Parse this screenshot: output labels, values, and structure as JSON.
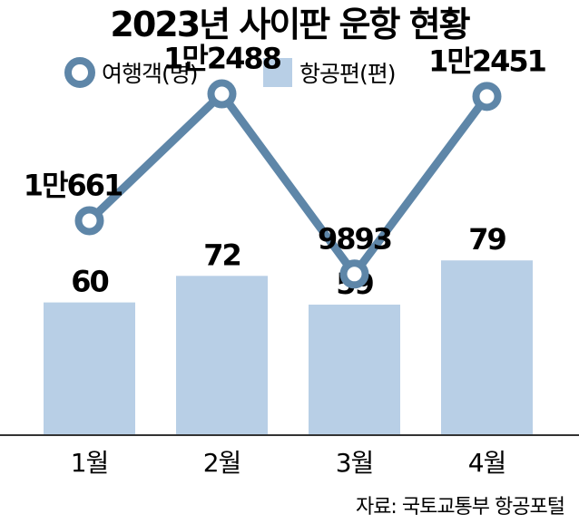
{
  "chart_data": {
    "type": "bar+line",
    "title": "2023년 사이판 운항 현황",
    "categories": [
      "1월",
      "2월",
      "3월",
      "4월"
    ],
    "series": [
      {
        "name": "여행객(명)",
        "type": "line",
        "values": [
          10661,
          12488,
          9893,
          12451
        ],
        "labels": [
          "1만661",
          "1만2488",
          "9893",
          "1만2451"
        ],
        "color": "#5e86a8"
      },
      {
        "name": "항공편(편)",
        "type": "bar",
        "values": [
          60,
          72,
          59,
          79
        ],
        "labels": [
          "60",
          "72",
          "59",
          "79"
        ],
        "color": "#b8cfe6"
      }
    ],
    "legend": "top-left",
    "grid": false,
    "source": "자료: 국토교통부 항공포털"
  }
}
